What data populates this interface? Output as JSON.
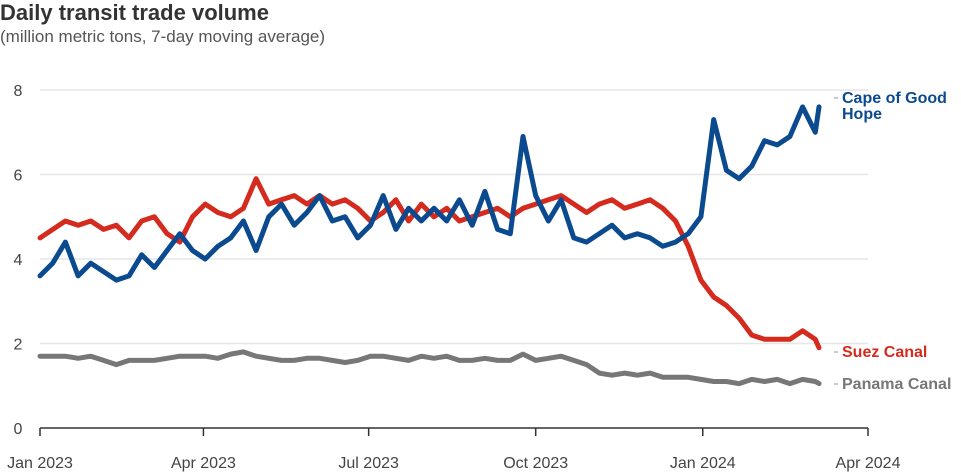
{
  "chart_data": {
    "type": "line",
    "title": "Daily transit trade volume",
    "subtitle": "(million metric tons, 7-day moving average)",
    "xlabel": "",
    "ylabel": "",
    "xlim": [
      "2023-01-01",
      "2024-04-01"
    ],
    "ylim": [
      0,
      8
    ],
    "grid": true,
    "legend": "direct labels at right end of lines",
    "x_ticks": [
      {
        "date": "2023-01-01",
        "label": "Jan 2023"
      },
      {
        "date": "2023-04-01",
        "label": "Apr 2023"
      },
      {
        "date": "2023-07-01",
        "label": "Jul 2023"
      },
      {
        "date": "2023-10-01",
        "label": "Oct 2023"
      },
      {
        "date": "2024-01-01",
        "label": "Jan 2024"
      },
      {
        "date": "2024-04-01",
        "label": "Apr 2024"
      }
    ],
    "y_ticks": [
      0,
      2,
      4,
      6,
      8
    ],
    "x": [
      "2023-01-01",
      "2023-01-08",
      "2023-01-15",
      "2023-01-22",
      "2023-01-29",
      "2023-02-05",
      "2023-02-12",
      "2023-02-19",
      "2023-02-26",
      "2023-03-05",
      "2023-03-12",
      "2023-03-19",
      "2023-03-26",
      "2023-04-02",
      "2023-04-09",
      "2023-04-16",
      "2023-04-23",
      "2023-04-30",
      "2023-05-07",
      "2023-05-14",
      "2023-05-21",
      "2023-05-28",
      "2023-06-04",
      "2023-06-11",
      "2023-06-18",
      "2023-06-25",
      "2023-07-02",
      "2023-07-09",
      "2023-07-16",
      "2023-07-23",
      "2023-07-30",
      "2023-08-06",
      "2023-08-13",
      "2023-08-20",
      "2023-08-27",
      "2023-09-03",
      "2023-09-10",
      "2023-09-17",
      "2023-09-24",
      "2023-10-01",
      "2023-10-08",
      "2023-10-15",
      "2023-10-22",
      "2023-10-29",
      "2023-11-05",
      "2023-11-12",
      "2023-11-19",
      "2023-11-26",
      "2023-12-03",
      "2023-12-10",
      "2023-12-17",
      "2023-12-24",
      "2023-12-31",
      "2024-01-07",
      "2024-01-14",
      "2024-01-21",
      "2024-01-28",
      "2024-02-04",
      "2024-02-11",
      "2024-02-18",
      "2024-02-25",
      "2024-03-03",
      "2024-03-05"
    ],
    "series": [
      {
        "name": "Cape of Good Hope",
        "color": "#0b4a8f",
        "values": [
          3.6,
          3.9,
          4.4,
          3.6,
          3.9,
          3.7,
          3.5,
          3.6,
          4.1,
          3.8,
          4.2,
          4.6,
          4.2,
          4.0,
          4.3,
          4.5,
          4.9,
          4.2,
          5.0,
          5.3,
          4.8,
          5.1,
          5.5,
          4.9,
          5.0,
          4.5,
          4.8,
          5.5,
          4.7,
          5.2,
          4.9,
          5.2,
          4.9,
          5.4,
          4.8,
          5.6,
          4.7,
          4.6,
          6.9,
          5.5,
          4.9,
          5.4,
          4.5,
          4.4,
          4.6,
          4.8,
          4.5,
          4.6,
          4.5,
          4.3,
          4.4,
          4.6,
          5.0,
          7.3,
          6.1,
          5.9,
          6.2,
          6.8,
          6.7,
          6.9,
          7.6,
          7.0,
          7.6
        ]
      },
      {
        "name": "Suez Canal",
        "color": "#d52b1e",
        "values": [
          4.5,
          4.7,
          4.9,
          4.8,
          4.9,
          4.7,
          4.8,
          4.5,
          4.9,
          5.0,
          4.6,
          4.4,
          5.0,
          5.3,
          5.1,
          5.0,
          5.2,
          5.9,
          5.3,
          5.4,
          5.5,
          5.3,
          5.5,
          5.3,
          5.4,
          5.2,
          4.9,
          5.1,
          5.4,
          4.9,
          5.3,
          5.0,
          5.2,
          4.9,
          5.0,
          5.1,
          5.2,
          5.0,
          5.2,
          5.3,
          5.4,
          5.5,
          5.3,
          5.1,
          5.3,
          5.4,
          5.2,
          5.3,
          5.4,
          5.2,
          4.9,
          4.3,
          3.5,
          3.1,
          2.9,
          2.6,
          2.2,
          2.1,
          2.1,
          2.1,
          2.3,
          2.1,
          1.9
        ]
      },
      {
        "name": "Panama Canal",
        "color": "#777777",
        "values": [
          1.7,
          1.7,
          1.7,
          1.65,
          1.7,
          1.6,
          1.5,
          1.6,
          1.6,
          1.6,
          1.65,
          1.7,
          1.7,
          1.7,
          1.65,
          1.75,
          1.8,
          1.7,
          1.65,
          1.6,
          1.6,
          1.65,
          1.65,
          1.6,
          1.55,
          1.6,
          1.7,
          1.7,
          1.65,
          1.6,
          1.7,
          1.65,
          1.7,
          1.6,
          1.6,
          1.65,
          1.6,
          1.6,
          1.75,
          1.6,
          1.65,
          1.7,
          1.6,
          1.5,
          1.3,
          1.25,
          1.3,
          1.25,
          1.3,
          1.2,
          1.2,
          1.2,
          1.15,
          1.1,
          1.1,
          1.05,
          1.15,
          1.1,
          1.15,
          1.05,
          1.15,
          1.1,
          1.05
        ]
      }
    ]
  }
}
